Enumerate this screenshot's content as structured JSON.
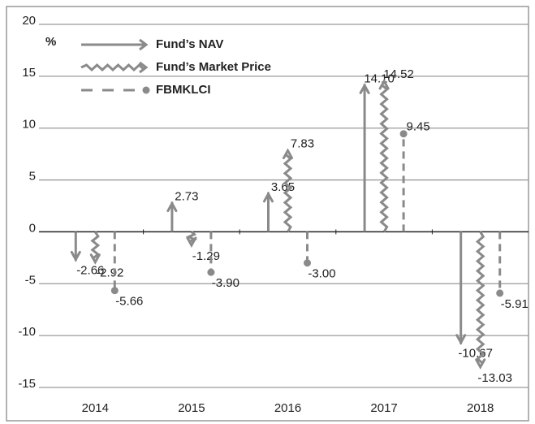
{
  "chart_data": {
    "type": "arrow",
    "y_label": "%",
    "categories": [
      "2014",
      "2015",
      "2016",
      "2017",
      "2018"
    ],
    "series": [
      {
        "name": "Fund’s NAV",
        "color": "#8a8a8a",
        "style": "solid",
        "values": [
          -2.66,
          2.73,
          3.65,
          14.1,
          -10.67
        ],
        "value_labels": [
          "-2.66",
          "2.73",
          "3.65",
          "14.10",
          "-10.67"
        ]
      },
      {
        "name": "Fund’s Market Price",
        "color": "#8a8a8a",
        "style": "wavy",
        "values": [
          -2.92,
          -1.29,
          7.83,
          14.52,
          -13.03
        ],
        "value_labels": [
          "-2.92",
          "-1.29",
          "7.83",
          "14.52",
          "-13.03"
        ]
      },
      {
        "name": "FBMKLCI",
        "color": "#8a8a8a",
        "style": "dashed",
        "values": [
          -5.66,
          -3.9,
          -3.0,
          9.45,
          -5.91
        ],
        "value_labels": [
          "-5.66",
          "-3.90",
          "-3.00",
          "9.45",
          "-5.91"
        ]
      }
    ],
    "ylim": [
      -15,
      20
    ],
    "yticks": [
      -15,
      -10,
      -5,
      0,
      5,
      10,
      15,
      20
    ],
    "grid": true
  }
}
